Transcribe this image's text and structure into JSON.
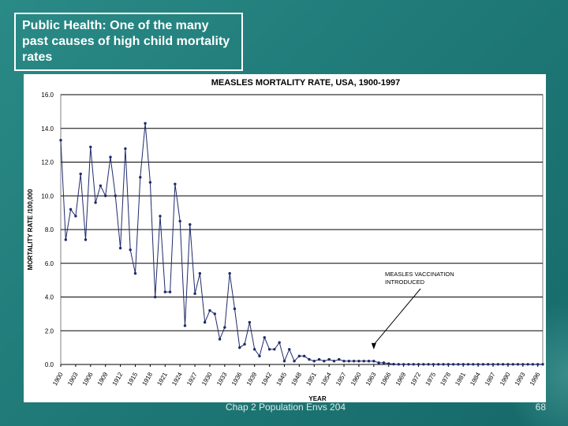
{
  "slide": {
    "title": "Public Health:  One of the many past causes of high child mortality rates",
    "footer": "Chap 2 Population Envs 204",
    "page_number": "68"
  },
  "colors": {
    "background": "#1f7a78",
    "series": "#1f2a6a",
    "axis": "#000000"
  },
  "chart_data": {
    "type": "line",
    "title": "MEASLES MORTALITY RATE, USA, 1900-1997",
    "xlabel": "YEAR",
    "ylabel": "MORTALITY RATE /100,000",
    "ylim": [
      0,
      16
    ],
    "xlim": [
      1900,
      1997
    ],
    "y_ticks": [
      "0.0",
      "2.0",
      "4.0",
      "6.0",
      "8.0",
      "10.0",
      "12.0",
      "14.0",
      "16.0"
    ],
    "x_ticks": [
      "1900",
      "1903",
      "1906",
      "1909",
      "1912",
      "1915",
      "1918",
      "1921",
      "1924",
      "1927",
      "1930",
      "1933",
      "1936",
      "1939",
      "1942",
      "1945",
      "1948",
      "1951",
      "1954",
      "1957",
      "1960",
      "1963",
      "1966",
      "1969",
      "1972",
      "1975",
      "1978",
      "1981",
      "1984",
      "1987",
      "1990",
      "1993",
      "1996"
    ],
    "annotation": {
      "text": "MEASLES VACCINATION INTRODUCED",
      "x": 1963,
      "y": 0.8
    },
    "series": [
      {
        "name": "Measles mortality rate",
        "x": [
          1900,
          1901,
          1902,
          1903,
          1904,
          1905,
          1906,
          1907,
          1908,
          1909,
          1910,
          1911,
          1912,
          1913,
          1914,
          1915,
          1916,
          1917,
          1918,
          1919,
          1920,
          1921,
          1922,
          1923,
          1924,
          1925,
          1926,
          1927,
          1928,
          1929,
          1930,
          1931,
          1932,
          1933,
          1934,
          1935,
          1936,
          1937,
          1938,
          1939,
          1940,
          1941,
          1942,
          1943,
          1944,
          1945,
          1946,
          1947,
          1948,
          1949,
          1950,
          1951,
          1952,
          1953,
          1954,
          1955,
          1956,
          1957,
          1958,
          1959,
          1960,
          1961,
          1962,
          1963,
          1964,
          1965,
          1966,
          1967,
          1968,
          1969,
          1970,
          1971,
          1972,
          1973,
          1974,
          1975,
          1976,
          1977,
          1978,
          1979,
          1980,
          1981,
          1982,
          1983,
          1984,
          1985,
          1986,
          1987,
          1988,
          1989,
          1990,
          1991,
          1992,
          1993,
          1994,
          1995,
          1996,
          1997
        ],
        "values": [
          13.3,
          7.4,
          9.2,
          8.8,
          11.3,
          7.4,
          12.9,
          9.6,
          10.6,
          10.0,
          12.3,
          10.0,
          6.9,
          12.8,
          6.8,
          5.4,
          11.1,
          14.3,
          10.8,
          4.0,
          8.8,
          4.3,
          4.3,
          10.7,
          8.5,
          2.3,
          8.3,
          4.2,
          5.4,
          2.5,
          3.2,
          3.0,
          1.5,
          2.2,
          5.4,
          3.3,
          1.0,
          1.2,
          2.5,
          0.9,
          0.5,
          1.6,
          0.9,
          0.9,
          1.3,
          0.2,
          0.9,
          0.2,
          0.5,
          0.5,
          0.3,
          0.2,
          0.3,
          0.2,
          0.3,
          0.2,
          0.3,
          0.2,
          0.2,
          0.2,
          0.2,
          0.2,
          0.2,
          0.2,
          0.1,
          0.1,
          0.05,
          0.02,
          0.01,
          0.01,
          0.01,
          0.01,
          0.01,
          0.01,
          0.01,
          0.01,
          0.01,
          0.01,
          0.01,
          0.01,
          0.01,
          0.01,
          0.01,
          0.01,
          0.01,
          0.01,
          0.01,
          0.01,
          0.01,
          0.01,
          0.01,
          0.01,
          0.01,
          0.01,
          0.01,
          0.01,
          0.01,
          0.01
        ]
      }
    ]
  }
}
